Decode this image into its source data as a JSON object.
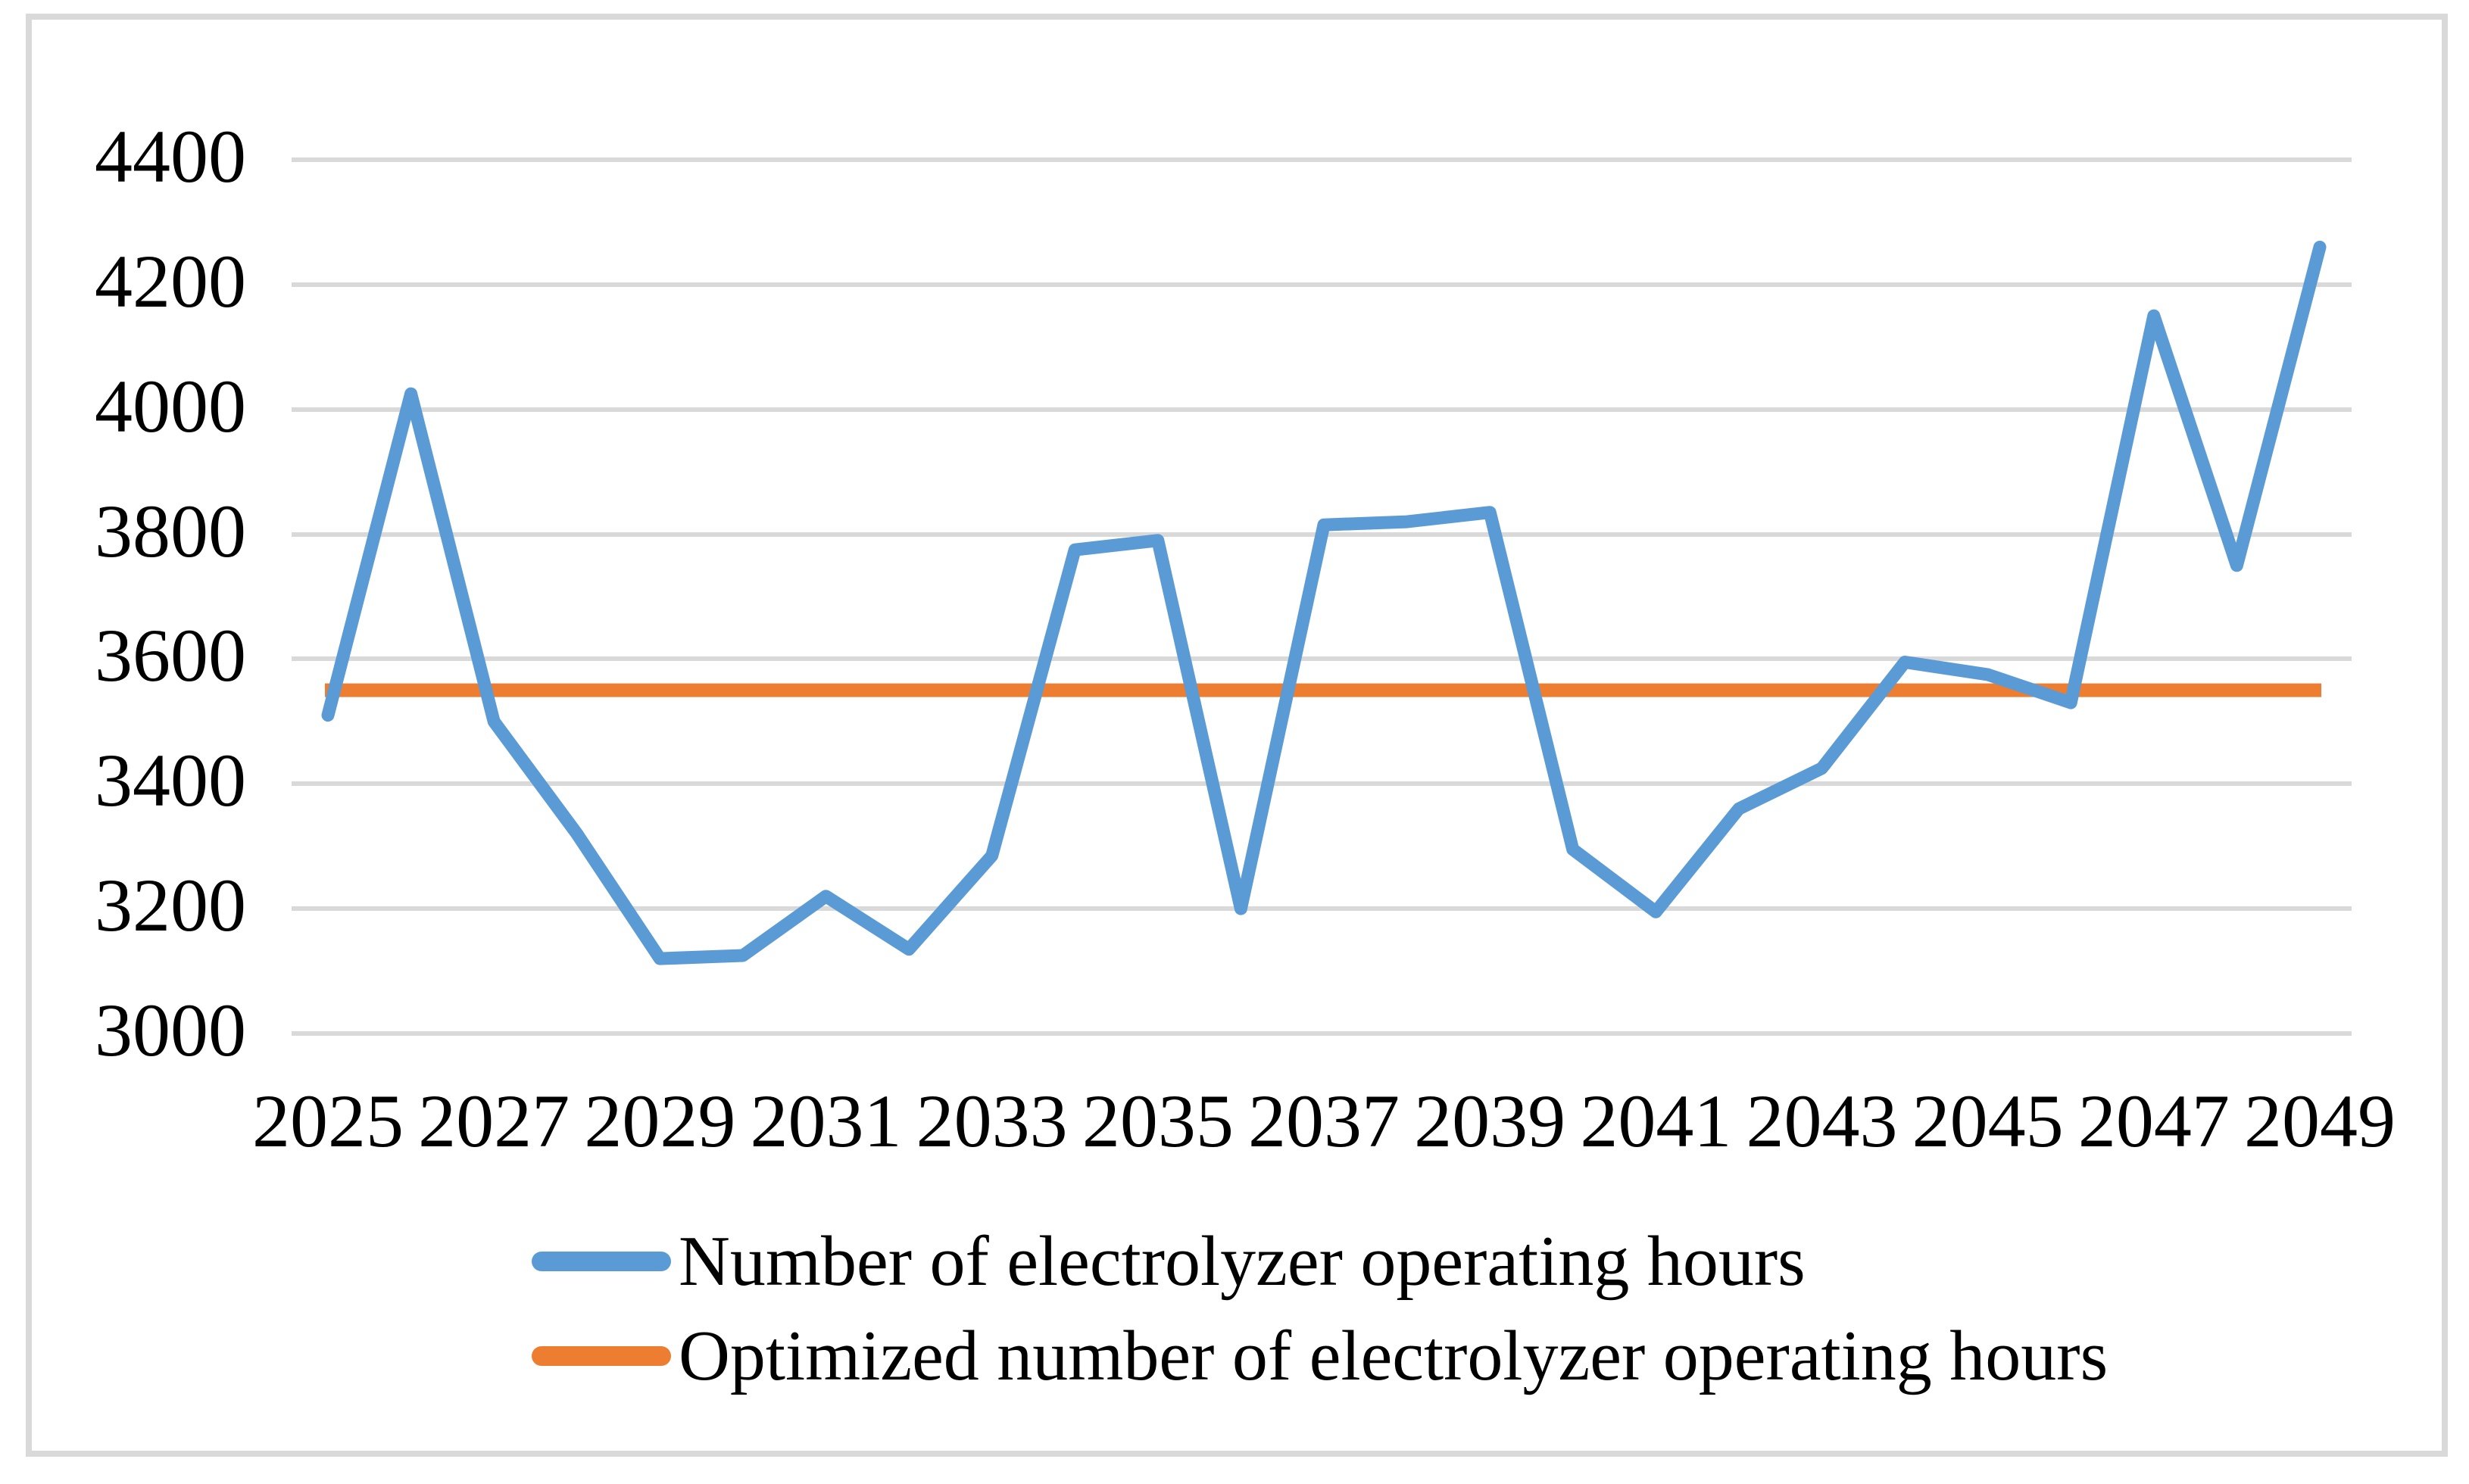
{
  "chart_data": {
    "type": "line",
    "title": "",
    "xlabel": "",
    "ylabel": "",
    "x": [
      2025,
      2026,
      2027,
      2028,
      2029,
      2030,
      2031,
      2032,
      2033,
      2034,
      2035,
      2036,
      2037,
      2038,
      2039,
      2040,
      2041,
      2042,
      2043,
      2044,
      2045,
      2046,
      2047,
      2048,
      2049
    ],
    "x_tick_labels": [
      "2025",
      "2027",
      "2029",
      "2031",
      "2033",
      "2035",
      "2037",
      "2039",
      "2041",
      "2043",
      "2045",
      "2047",
      "2049"
    ],
    "y_ticks": [
      3000,
      3200,
      3400,
      3600,
      3800,
      4000,
      4200,
      4400
    ],
    "ylim": [
      3000,
      4400
    ],
    "grid": "horizontal",
    "legend_position": "bottom-left",
    "series": [
      {
        "name": "Number of electrolyzer operating hours",
        "type": "line",
        "color": "#5B9BD5",
        "values": [
          3510,
          4025,
          3500,
          3320,
          3120,
          3125,
          3220,
          3135,
          3285,
          3775,
          3790,
          3200,
          3815,
          3820,
          3835,
          3295,
          3195,
          3360,
          3425,
          3595,
          3575,
          3530,
          4150,
          3750,
          4260
        ]
      },
      {
        "name": "Optimized number of electrolyzer operating hours",
        "type": "constant-line",
        "color": "#ED7D31",
        "value": 3550
      }
    ]
  },
  "colors": {
    "gridline": "#D9D9D9",
    "frame_border": "#D9D9D9",
    "background": "#FFFFFF",
    "text": "#000000"
  }
}
